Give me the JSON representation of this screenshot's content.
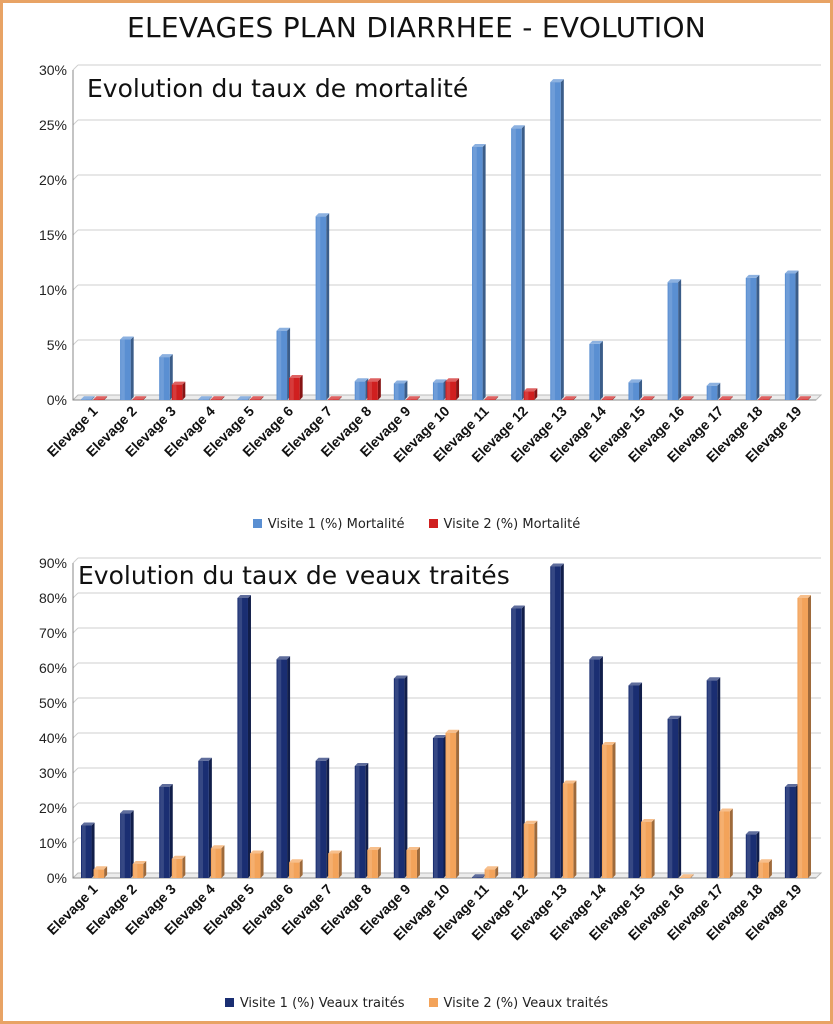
{
  "page_title": "ELEVAGES PLAN DIARRHEE - EVOLUTION",
  "colors": {
    "border": "#e8a365",
    "grid": "#cfcfcf",
    "axis": "#888888"
  },
  "chart_data": [
    {
      "type": "bar",
      "title": "Evolution du taux de mortalité",
      "xlabel": "",
      "ylabel": "",
      "ylim": [
        0,
        30
      ],
      "yticks": [
        "0%",
        "5%",
        "10%",
        "15%",
        "20%",
        "25%",
        "30%"
      ],
      "grid": true,
      "legend_position": "bottom",
      "categories": [
        "Elevage 1",
        "Elevage 2",
        "Elevage 3",
        "Elevage 4",
        "Elevage 5",
        "Elevage 6",
        "Elevage 7",
        "Elevage 8",
        "Elevage 9",
        "Elevage 10",
        "Elevage 11",
        "Elevage 12",
        "Elevage 13",
        "Elevage 14",
        "Elevage 15",
        "Elevage 16",
        "Elevage 17",
        "Elevage 18",
        "Elevage 19"
      ],
      "series": [
        {
          "name": "Visite 1 (%) Mortalité",
          "color": "#5a8fd2",
          "values": [
            0,
            5.5,
            3.9,
            0,
            0,
            6.3,
            16.7,
            1.7,
            1.5,
            1.6,
            23.0,
            24.7,
            28.9,
            5.1,
            1.6,
            10.7,
            1.3,
            11.1,
            11.5
          ]
        },
        {
          "name": "Visite 2 (%) Mortalité",
          "color": "#d01f1f",
          "values": [
            0,
            0,
            1.4,
            0,
            0,
            2.0,
            0,
            1.7,
            0,
            1.7,
            0,
            0.8,
            0,
            0,
            0,
            0,
            0,
            0,
            0
          ]
        }
      ]
    },
    {
      "type": "bar",
      "title": "Evolution du taux de veaux traités",
      "xlabel": "",
      "ylabel": "",
      "ylim": [
        0,
        90
      ],
      "yticks": [
        "0%",
        "10%",
        "20%",
        "30%",
        "40%",
        "50%",
        "60%",
        "70%",
        "80%",
        "90%"
      ],
      "grid": true,
      "legend_position": "bottom",
      "categories": [
        "Elevage 1",
        "Elevage 2",
        "Elevage 3",
        "Elevage 4",
        "Elevage 5",
        "Elevage 6",
        "Elevage 7",
        "Elevage 8",
        "Elevage 9",
        "Elevage 10",
        "Elevage 11",
        "Elevage 12",
        "Elevage 13",
        "Elevage 14",
        "Elevage 15",
        "Elevage 16",
        "Elevage 17",
        "Elevage 18",
        "Elevage 19"
      ],
      "series": [
        {
          "name": "Visite 1 (%) Veaux traités",
          "color": "#1a2e72",
          "values": [
            15,
            18.5,
            26,
            33.5,
            80,
            62.5,
            33.5,
            32,
            57,
            40,
            0,
            77,
            89,
            62.5,
            55,
            45.5,
            56.5,
            12.5,
            26
          ]
        },
        {
          "name": "Visite 2 (%) Veaux traités",
          "color": "#f3a35a",
          "values": [
            2.5,
            4,
            5.5,
            8.5,
            7,
            4.5,
            7,
            8,
            8,
            41.5,
            2.5,
            15.5,
            27,
            38,
            16,
            0,
            19,
            4.5,
            80
          ]
        }
      ]
    }
  ]
}
